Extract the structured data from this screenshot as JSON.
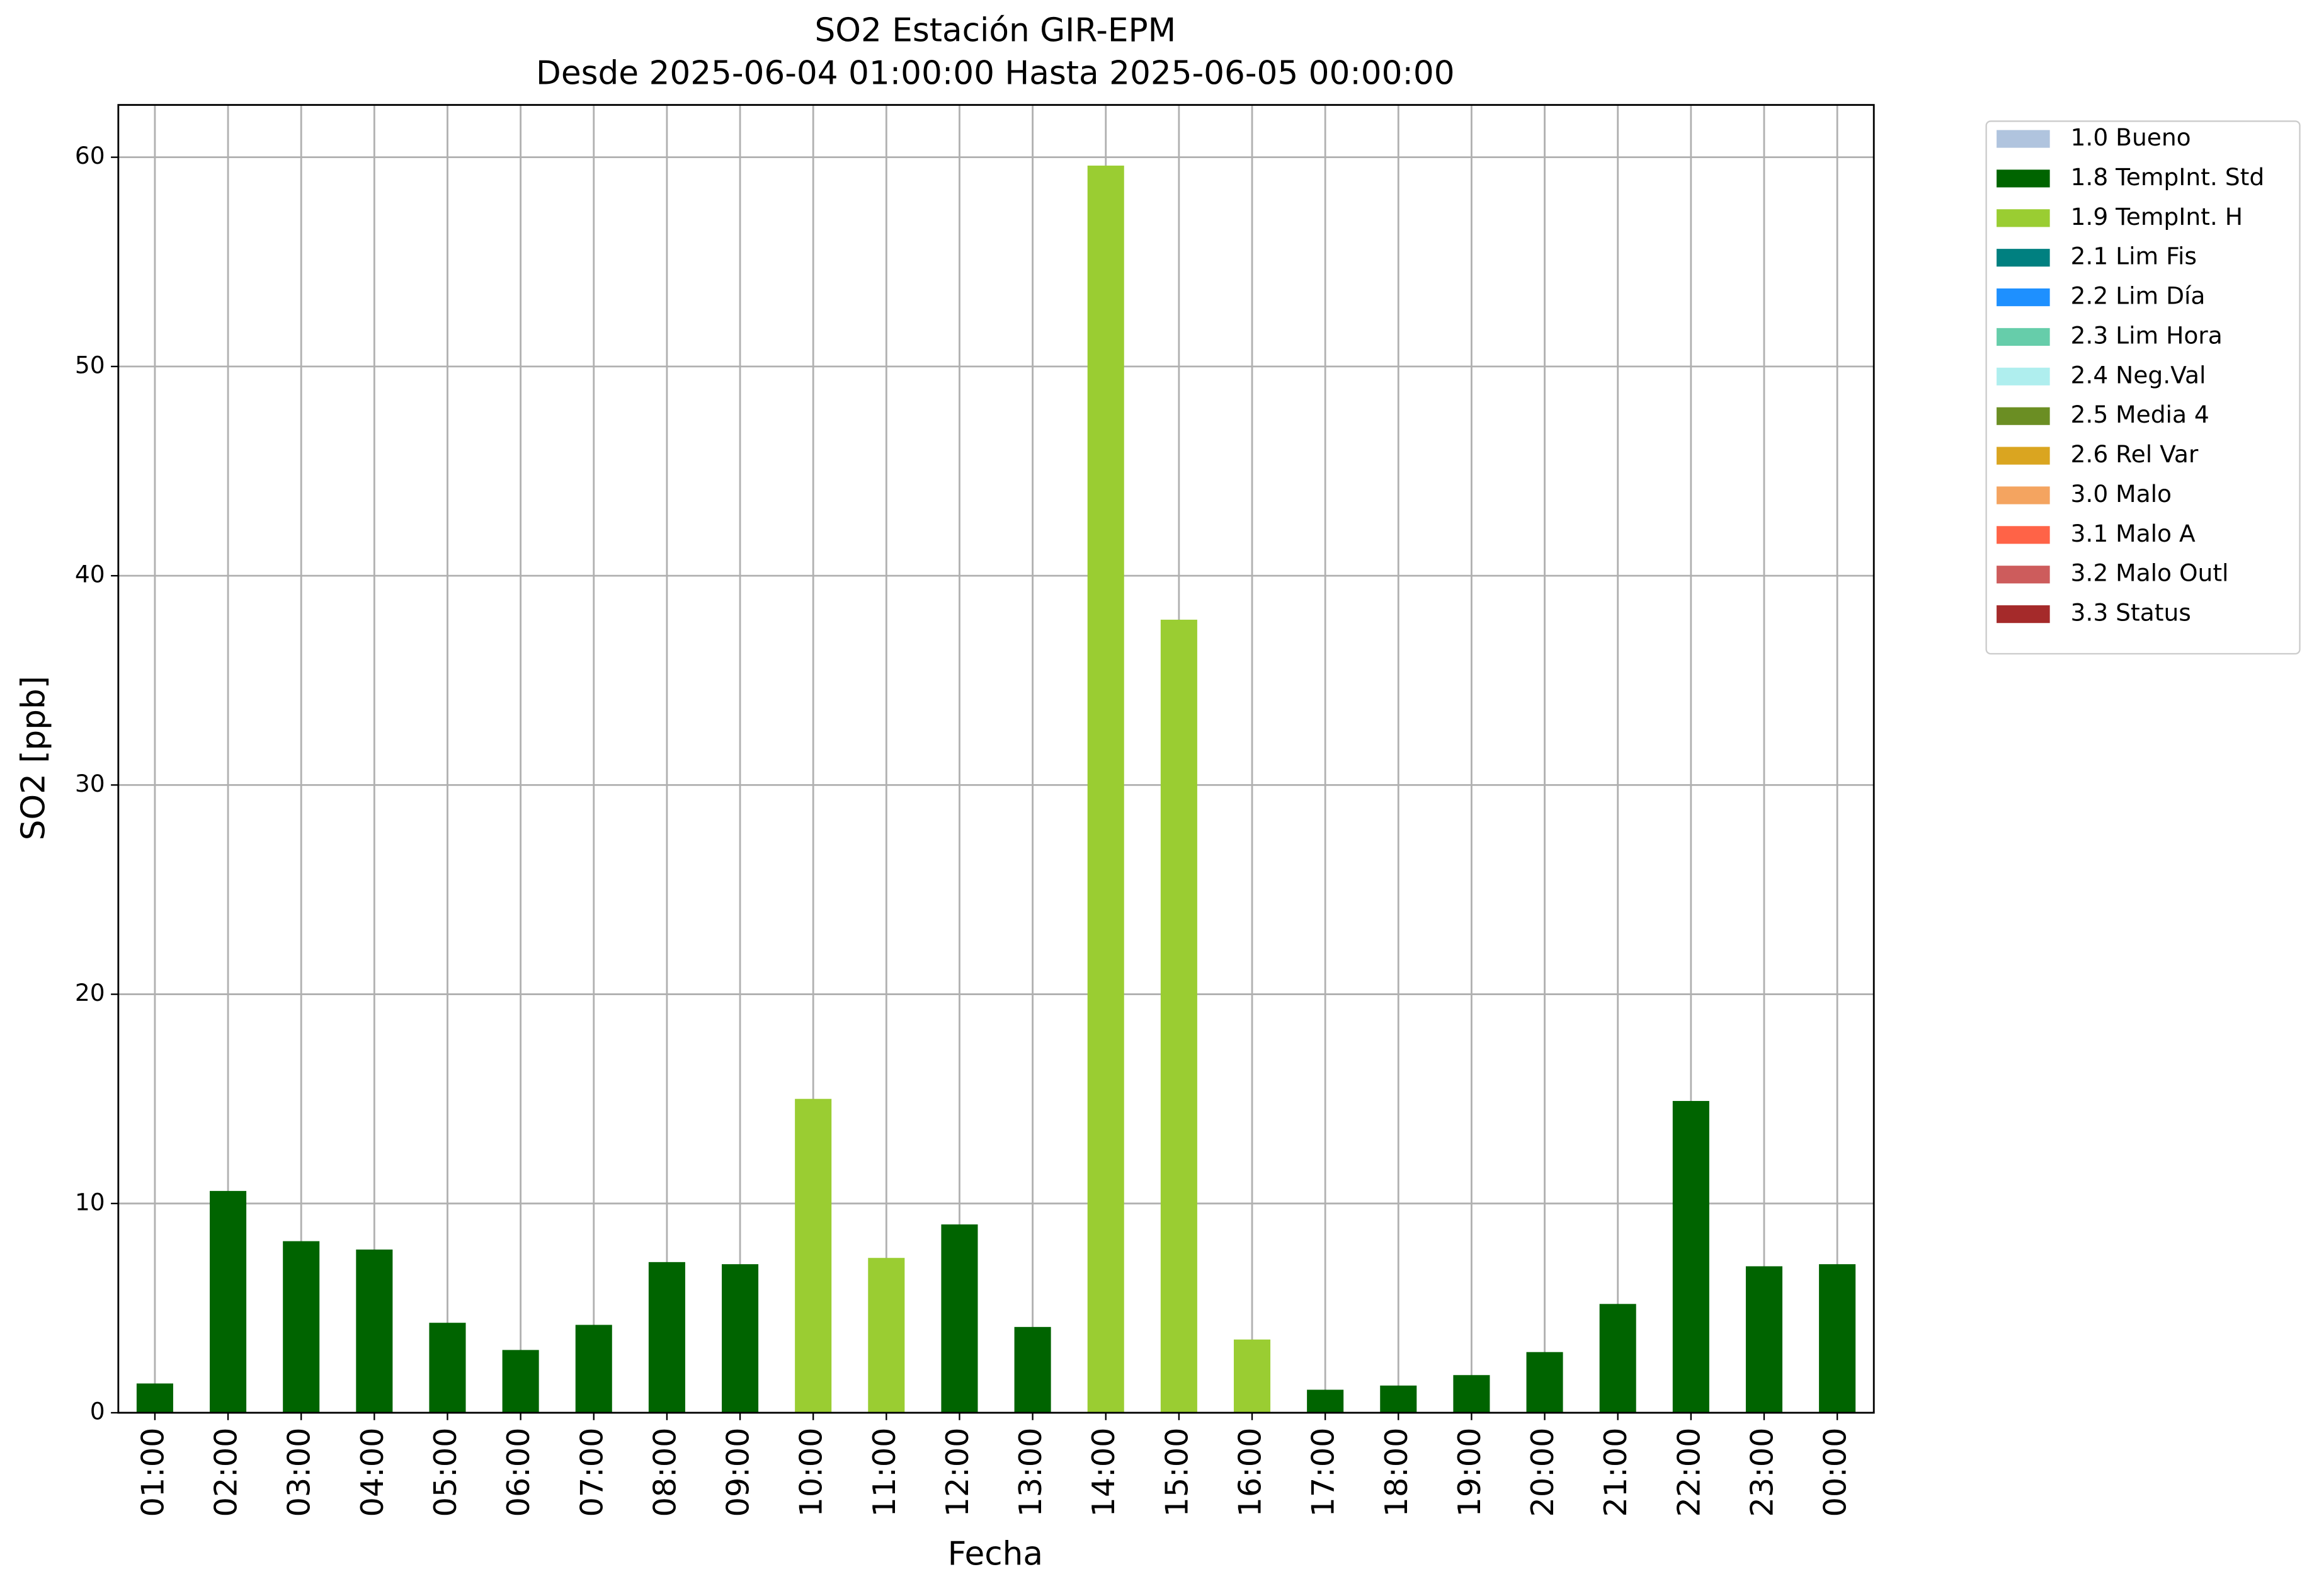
{
  "chart_data": {
    "type": "bar",
    "stacked": true,
    "title": "SO2 Estación GIR-EPM",
    "subtitle": "Desde 2025-06-04 01:00:00 Hasta 2025-06-05 00:00:00",
    "x_label": "Fecha",
    "y_label": "SO2 [ppb]",
    "categories": [
      "01:00",
      "02:00",
      "03:00",
      "04:00",
      "05:00",
      "06:00",
      "07:00",
      "08:00",
      "09:00",
      "10:00",
      "11:00",
      "12:00",
      "13:00",
      "14:00",
      "15:00",
      "16:00",
      "17:00",
      "18:00",
      "19:00",
      "20:00",
      "21:00",
      "22:00",
      "23:00",
      "00:00"
    ],
    "series": [
      {
        "name": "1.0 Bueno",
        "color": "#b0c4de",
        "values": [
          null,
          null,
          null,
          null,
          null,
          null,
          null,
          null,
          null,
          null,
          null,
          null,
          null,
          null,
          null,
          null,
          null,
          null,
          null,
          null,
          null,
          null,
          null,
          null
        ]
      },
      {
        "name": "1.8 TempInt. Std",
        "color": "#006400",
        "values": [
          1.4,
          10.6,
          8.2,
          7.8,
          4.3,
          3.0,
          4.2,
          7.2,
          7.1,
          null,
          null,
          9.0,
          4.1,
          null,
          null,
          null,
          1.1,
          1.3,
          1.8,
          2.9,
          5.2,
          14.9,
          7.0,
          7.1
        ]
      },
      {
        "name": "1.9 TempInt. H",
        "color": "#9acd32",
        "values": [
          null,
          null,
          null,
          null,
          null,
          null,
          null,
          null,
          null,
          15.0,
          7.4,
          null,
          null,
          59.6,
          37.9,
          3.5,
          null,
          null,
          null,
          null,
          null,
          null,
          null,
          null
        ]
      },
      {
        "name": "2.1 Lim Fis",
        "color": "#008080",
        "values": [
          null,
          null,
          null,
          null,
          null,
          null,
          null,
          null,
          null,
          null,
          null,
          null,
          null,
          null,
          null,
          null,
          null,
          null,
          null,
          null,
          null,
          null,
          null,
          null
        ]
      },
      {
        "name": "2.2 Lim Día",
        "color": "#1e90ff",
        "values": [
          null,
          null,
          null,
          null,
          null,
          null,
          null,
          null,
          null,
          null,
          null,
          null,
          null,
          null,
          null,
          null,
          null,
          null,
          null,
          null,
          null,
          null,
          null,
          null
        ]
      },
      {
        "name": "2.3 Lim Hora",
        "color": "#66cdaa",
        "values": [
          null,
          null,
          null,
          null,
          null,
          null,
          null,
          null,
          null,
          null,
          null,
          null,
          null,
          null,
          null,
          null,
          null,
          null,
          null,
          null,
          null,
          null,
          null,
          null
        ]
      },
      {
        "name": "2.4 Neg.Val",
        "color": "#afeeee",
        "values": [
          null,
          null,
          null,
          null,
          null,
          null,
          null,
          null,
          null,
          null,
          null,
          null,
          null,
          null,
          null,
          null,
          null,
          null,
          null,
          null,
          null,
          null,
          null,
          null
        ]
      },
      {
        "name": "2.5 Media 4",
        "color": "#6b8e23",
        "values": [
          null,
          null,
          null,
          null,
          null,
          null,
          null,
          null,
          null,
          null,
          null,
          null,
          null,
          null,
          null,
          null,
          null,
          null,
          null,
          null,
          null,
          null,
          null,
          null
        ]
      },
      {
        "name": "2.6 Rel Var",
        "color": "#daa520",
        "values": [
          null,
          null,
          null,
          null,
          null,
          null,
          null,
          null,
          null,
          null,
          null,
          null,
          null,
          null,
          null,
          null,
          null,
          null,
          null,
          null,
          null,
          null,
          null,
          null
        ]
      },
      {
        "name": "3.0 Malo",
        "color": "#f4a460",
        "values": [
          null,
          null,
          null,
          null,
          null,
          null,
          null,
          null,
          null,
          null,
          null,
          null,
          null,
          null,
          null,
          null,
          null,
          null,
          null,
          null,
          null,
          null,
          null,
          null
        ]
      },
      {
        "name": "3.1 Malo A",
        "color": "#ff6347",
        "values": [
          null,
          null,
          null,
          null,
          null,
          null,
          null,
          null,
          null,
          null,
          null,
          null,
          null,
          null,
          null,
          null,
          null,
          null,
          null,
          null,
          null,
          null,
          null,
          null
        ]
      },
      {
        "name": "3.2 Malo Outl",
        "color": "#cd5c5c",
        "values": [
          null,
          null,
          null,
          null,
          null,
          null,
          null,
          null,
          null,
          null,
          null,
          null,
          null,
          null,
          null,
          null,
          null,
          null,
          null,
          null,
          null,
          null,
          null,
          null
        ]
      },
      {
        "name": "3.3 Status",
        "color": "#a52a2a",
        "values": [
          null,
          null,
          null,
          null,
          null,
          null,
          null,
          null,
          null,
          null,
          null,
          null,
          null,
          null,
          null,
          null,
          null,
          null,
          null,
          null,
          null,
          null,
          null,
          null
        ]
      }
    ],
    "ylim": [
      0,
      62.5
    ],
    "yticks": [
      0,
      10,
      20,
      30,
      40,
      50,
      60
    ],
    "grid": true,
    "legend": "outside-right"
  }
}
